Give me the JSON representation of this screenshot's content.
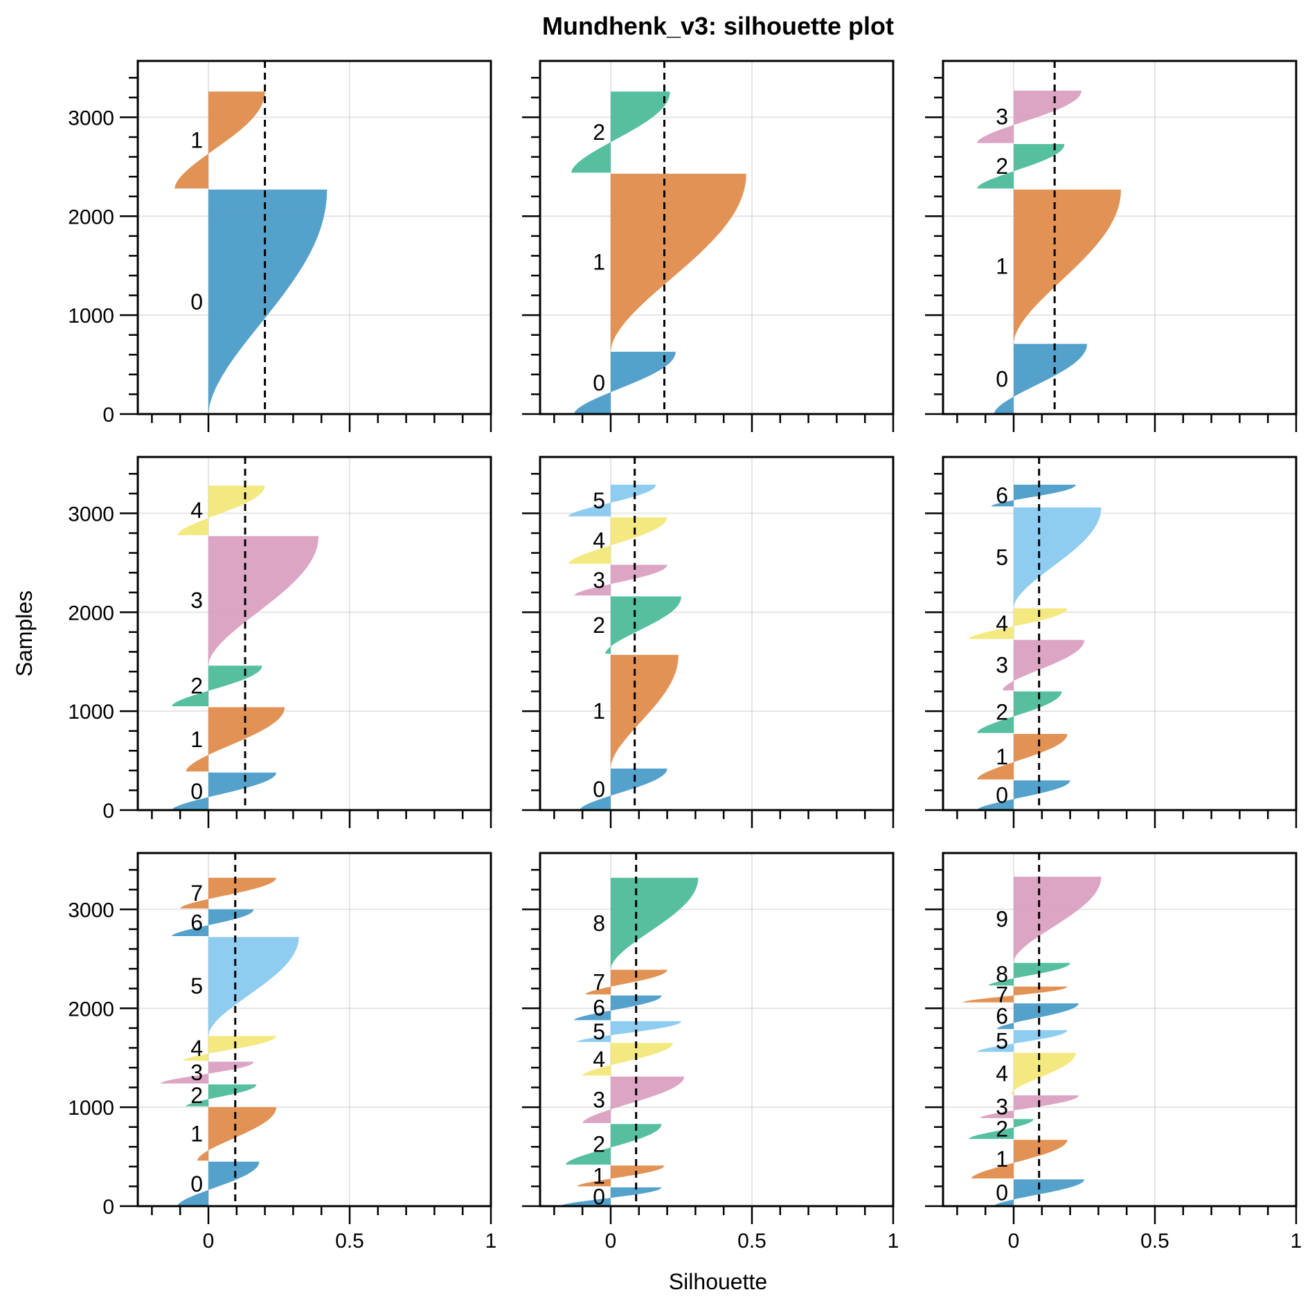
{
  "chart_data": {
    "type": "area",
    "title": "Mundhenk_v3: silhouette plot",
    "xlabel": "Silhouette",
    "ylabel": "Samples",
    "xlim": [
      -0.25,
      1.0
    ],
    "ylim": [
      0,
      3570
    ],
    "xticks": [
      0,
      0.5,
      1
    ],
    "xtick_labels": [
      "0",
      "0.5",
      "1"
    ],
    "yticks": [
      0,
      1000,
      2000,
      3000
    ],
    "ytick_labels": [
      "0",
      "1000",
      "2000",
      "3000"
    ],
    "grid": true,
    "layout": "3x3 grid, shared axes",
    "cluster_colors": [
      "#4b9cc8",
      "#e08c4b",
      "#4cbc9a",
      "#d9a0c0",
      "#f3e87a",
      "#88c9ef"
    ],
    "mean_line_style": "black dashed vertical line at mean silhouette",
    "panels": [
      {
        "n_clusters": 2,
        "mean": 0.2,
        "clusters": [
          {
            "label": "0",
            "y0": 0,
            "y1": 2270,
            "min": 0.0,
            "max": 0.42,
            "color_index": 0
          },
          {
            "label": "1",
            "y0": 2280,
            "y1": 3260,
            "min": -0.12,
            "max": 0.2,
            "color_index": 1
          }
        ]
      },
      {
        "n_clusters": 3,
        "mean": 0.19,
        "clusters": [
          {
            "label": "0",
            "y0": 0,
            "y1": 630,
            "min": -0.13,
            "max": 0.23,
            "color_index": 0
          },
          {
            "label": "1",
            "y0": 640,
            "y1": 2430,
            "min": 0.0,
            "max": 0.48,
            "color_index": 1
          },
          {
            "label": "2",
            "y0": 2440,
            "y1": 3260,
            "min": -0.14,
            "max": 0.21,
            "color_index": 2
          }
        ]
      },
      {
        "n_clusters": 4,
        "mean": 0.145,
        "clusters": [
          {
            "label": "0",
            "y0": 0,
            "y1": 710,
            "min": -0.07,
            "max": 0.26,
            "color_index": 0
          },
          {
            "label": "1",
            "y0": 720,
            "y1": 2270,
            "min": 0.0,
            "max": 0.38,
            "color_index": 1
          },
          {
            "label": "2",
            "y0": 2280,
            "y1": 2730,
            "min": -0.13,
            "max": 0.18,
            "color_index": 2
          },
          {
            "label": "3",
            "y0": 2740,
            "y1": 3270,
            "min": -0.13,
            "max": 0.24,
            "color_index": 3
          }
        ]
      },
      {
        "n_clusters": 5,
        "mean": 0.13,
        "clusters": [
          {
            "label": "0",
            "y0": 0,
            "y1": 380,
            "min": -0.13,
            "max": 0.24,
            "color_index": 0
          },
          {
            "label": "1",
            "y0": 390,
            "y1": 1040,
            "min": -0.08,
            "max": 0.27,
            "color_index": 1
          },
          {
            "label": "2",
            "y0": 1050,
            "y1": 1460,
            "min": -0.13,
            "max": 0.19,
            "color_index": 2
          },
          {
            "label": "3",
            "y0": 1470,
            "y1": 2770,
            "min": 0.0,
            "max": 0.39,
            "color_index": 3
          },
          {
            "label": "4",
            "y0": 2780,
            "y1": 3280,
            "min": -0.11,
            "max": 0.2,
            "color_index": 4
          }
        ]
      },
      {
        "n_clusters": 6,
        "mean": 0.085,
        "clusters": [
          {
            "label": "0",
            "y0": 0,
            "y1": 420,
            "min": -0.11,
            "max": 0.2,
            "color_index": 0
          },
          {
            "label": "1",
            "y0": 430,
            "y1": 1570,
            "min": 0.0,
            "max": 0.24,
            "color_index": 1
          },
          {
            "label": "2",
            "y0": 1580,
            "y1": 2160,
            "min": -0.02,
            "max": 0.25,
            "color_index": 2
          },
          {
            "label": "3",
            "y0": 2170,
            "y1": 2480,
            "min": -0.13,
            "max": 0.2,
            "color_index": 3
          },
          {
            "label": "4",
            "y0": 2490,
            "y1": 2960,
            "min": -0.15,
            "max": 0.2,
            "color_index": 4
          },
          {
            "label": "5",
            "y0": 2970,
            "y1": 3290,
            "min": -0.15,
            "max": 0.16,
            "color_index": 5
          }
        ]
      },
      {
        "n_clusters": 7,
        "mean": 0.09,
        "clusters": [
          {
            "label": "0",
            "y0": 0,
            "y1": 300,
            "min": -0.13,
            "max": 0.2,
            "color_index": 0
          },
          {
            "label": "1",
            "y0": 310,
            "y1": 770,
            "min": -0.13,
            "max": 0.19,
            "color_index": 1
          },
          {
            "label": "2",
            "y0": 780,
            "y1": 1200,
            "min": -0.13,
            "max": 0.17,
            "color_index": 2
          },
          {
            "label": "3",
            "y0": 1210,
            "y1": 1720,
            "min": -0.04,
            "max": 0.25,
            "color_index": 3
          },
          {
            "label": "4",
            "y0": 1730,
            "y1": 2040,
            "min": -0.16,
            "max": 0.19,
            "color_index": 4
          },
          {
            "label": "5",
            "y0": 2050,
            "y1": 3060,
            "min": 0.0,
            "max": 0.31,
            "color_index": 5
          },
          {
            "label": "6",
            "y0": 3070,
            "y1": 3290,
            "min": -0.08,
            "max": 0.22,
            "color_index": 0
          }
        ]
      },
      {
        "n_clusters": 8,
        "mean": 0.095,
        "clusters": [
          {
            "label": "0",
            "y0": 0,
            "y1": 450,
            "min": -0.11,
            "max": 0.18,
            "color_index": 0
          },
          {
            "label": "1",
            "y0": 460,
            "y1": 1000,
            "min": -0.04,
            "max": 0.24,
            "color_index": 1
          },
          {
            "label": "2",
            "y0": 1010,
            "y1": 1230,
            "min": -0.08,
            "max": 0.17,
            "color_index": 2
          },
          {
            "label": "3",
            "y0": 1240,
            "y1": 1460,
            "min": -0.17,
            "max": 0.16,
            "color_index": 3
          },
          {
            "label": "4",
            "y0": 1470,
            "y1": 1720,
            "min": -0.09,
            "max": 0.24,
            "color_index": 4
          },
          {
            "label": "5",
            "y0": 1730,
            "y1": 2720,
            "min": 0.0,
            "max": 0.32,
            "color_index": 5
          },
          {
            "label": "6",
            "y0": 2730,
            "y1": 3000,
            "min": -0.13,
            "max": 0.16,
            "color_index": 0
          },
          {
            "label": "7",
            "y0": 3010,
            "y1": 3320,
            "min": -0.1,
            "max": 0.24,
            "color_index": 1
          }
        ]
      },
      {
        "n_clusters": 9,
        "mean": 0.09,
        "clusters": [
          {
            "label": "0",
            "y0": 0,
            "y1": 190,
            "min": -0.18,
            "max": 0.18,
            "color_index": 0
          },
          {
            "label": "1",
            "y0": 200,
            "y1": 410,
            "min": -0.12,
            "max": 0.19,
            "color_index": 1
          },
          {
            "label": "2",
            "y0": 420,
            "y1": 830,
            "min": -0.16,
            "max": 0.18,
            "color_index": 2
          },
          {
            "label": "3",
            "y0": 840,
            "y1": 1310,
            "min": -0.1,
            "max": 0.26,
            "color_index": 3
          },
          {
            "label": "4",
            "y0": 1320,
            "y1": 1650,
            "min": -0.1,
            "max": 0.22,
            "color_index": 4
          },
          {
            "label": "5",
            "y0": 1660,
            "y1": 1870,
            "min": -0.12,
            "max": 0.25,
            "color_index": 5
          },
          {
            "label": "6",
            "y0": 1880,
            "y1": 2130,
            "min": -0.13,
            "max": 0.18,
            "color_index": 0
          },
          {
            "label": "7",
            "y0": 2140,
            "y1": 2390,
            "min": -0.09,
            "max": 0.2,
            "color_index": 1
          },
          {
            "label": "8",
            "y0": 2400,
            "y1": 3320,
            "min": 0.0,
            "max": 0.31,
            "color_index": 2
          }
        ]
      },
      {
        "n_clusters": 10,
        "mean": 0.09,
        "clusters": [
          {
            "label": "0",
            "y0": 0,
            "y1": 270,
            "min": -0.07,
            "max": 0.25,
            "color_index": 0
          },
          {
            "label": "1",
            "y0": 280,
            "y1": 670,
            "min": -0.15,
            "max": 0.19,
            "color_index": 1
          },
          {
            "label": "2",
            "y0": 680,
            "y1": 880,
            "min": -0.16,
            "max": 0.07,
            "color_index": 2
          },
          {
            "label": "3",
            "y0": 890,
            "y1": 1120,
            "min": -0.12,
            "max": 0.23,
            "color_index": 3
          },
          {
            "label": "4",
            "y0": 1130,
            "y1": 1550,
            "min": -0.01,
            "max": 0.22,
            "color_index": 4
          },
          {
            "label": "5",
            "y0": 1560,
            "y1": 1780,
            "min": -0.13,
            "max": 0.19,
            "color_index": 5
          },
          {
            "label": "6",
            "y0": 1790,
            "y1": 2050,
            "min": -0.06,
            "max": 0.23,
            "color_index": 0
          },
          {
            "label": "7",
            "y0": 2060,
            "y1": 2220,
            "min": -0.18,
            "max": 0.19,
            "color_index": 1
          },
          {
            "label": "8",
            "y0": 2230,
            "y1": 2460,
            "min": -0.09,
            "max": 0.2,
            "color_index": 2
          },
          {
            "label": "9",
            "y0": 2470,
            "y1": 3330,
            "min": 0.0,
            "max": 0.31,
            "color_index": 3
          }
        ]
      }
    ]
  }
}
